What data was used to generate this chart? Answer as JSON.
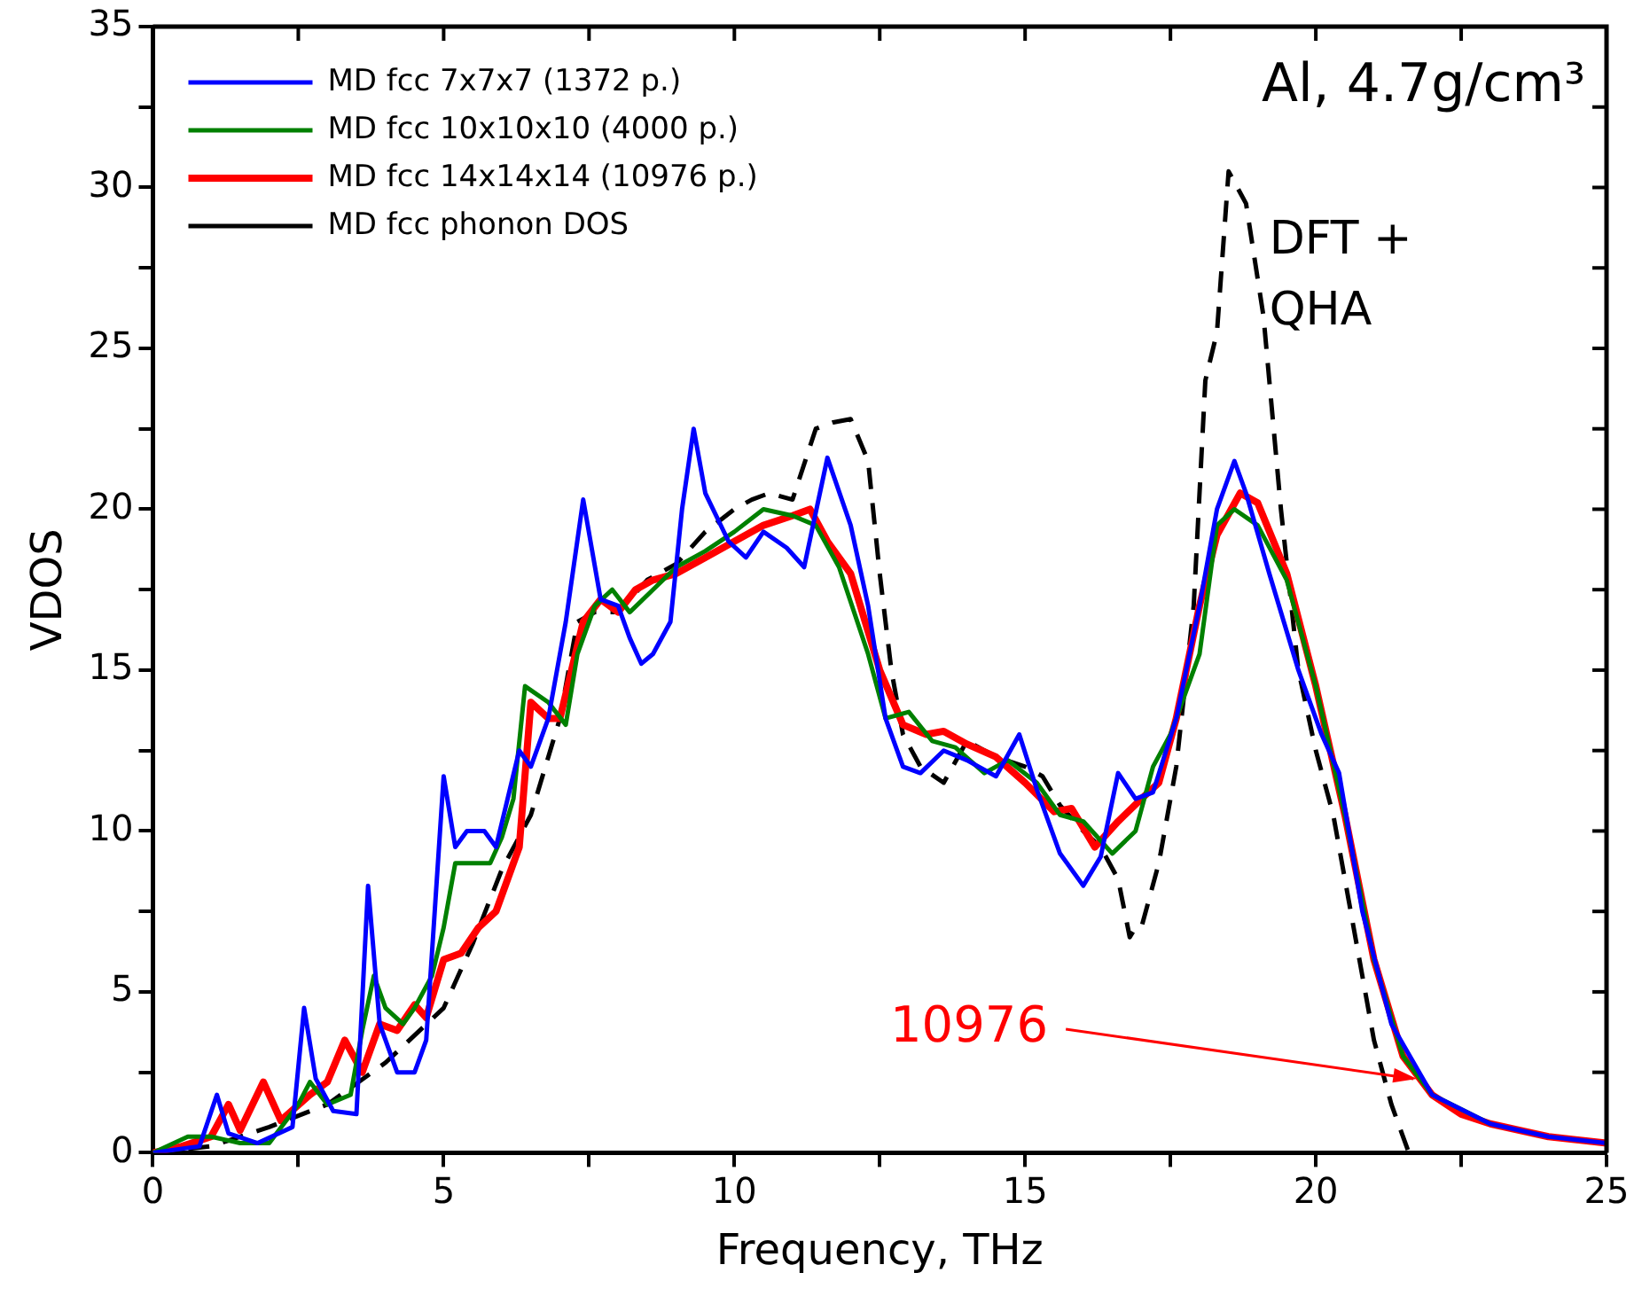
{
  "chart_data": {
    "type": "line",
    "xlabel": "Frequency, THz",
    "ylabel": "VDOS",
    "xlim": [
      0,
      25
    ],
    "ylim": [
      0,
      35
    ],
    "xticks": [
      0,
      {
        "value": 2.5,
        "label": null
      },
      5,
      {
        "value": 7.5,
        "label": null
      },
      10,
      {
        "value": 12.5,
        "label": null
      },
      15,
      {
        "value": 17.5,
        "label": null
      },
      20,
      {
        "value": 22.5,
        "label": null
      },
      25
    ],
    "yticks": [
      0,
      {
        "value": 2.5,
        "label": null
      },
      5,
      {
        "value": 7.5,
        "label": null
      },
      10,
      {
        "value": 12.5,
        "label": null
      },
      15,
      {
        "value": 17.5,
        "label": null
      },
      20,
      {
        "value": 22.5,
        "label": null
      },
      25,
      {
        "value": 27.5,
        "label": null
      },
      30,
      {
        "value": 32.5,
        "label": null
      },
      35
    ],
    "grid": false,
    "legend": "top left",
    "marker": "none",
    "annotations": [
      "Al, 4.7g/cm³",
      "DFT + QHA",
      {
        "text": "10976",
        "x": 21.8,
        "y": 2.3
      }
    ],
    "series": [
      {
        "name": "MD fcc 7x7x7 (1372 p.)",
        "color": "#0000ff",
        "line_style": "solid",
        "x": [
          0,
          0.8,
          1.1,
          1.3,
          1.8,
          2.4,
          2.6,
          2.8,
          3.1,
          3.5,
          3.7,
          3.9,
          4.2,
          4.5,
          4.7,
          5.0,
          5.2,
          5.4,
          5.7,
          5.9,
          6.1,
          6.3,
          6.5,
          6.8,
          7.1,
          7.4,
          7.7,
          8.0,
          8.2,
          8.4,
          8.6,
          8.9,
          9.1,
          9.3,
          9.5,
          9.9,
          10.2,
          10.5,
          10.9,
          11.2,
          11.6,
          12.0,
          12.3,
          12.6,
          12.9,
          13.2,
          13.6,
          14.0,
          14.5,
          14.9,
          15.2,
          15.6,
          16.0,
          16.3,
          16.6,
          16.9,
          17.2,
          17.6,
          18.0,
          18.3,
          18.6,
          18.8,
          19.2,
          19.7,
          20.1,
          20.4,
          20.8,
          21.3,
          22.0,
          23.0,
          24.0,
          25.0
        ],
        "values": [
          0,
          0.2,
          1.8,
          0.6,
          0.3,
          0.8,
          4.5,
          2.3,
          1.3,
          1.2,
          8.3,
          4.0,
          2.5,
          2.5,
          3.5,
          11.7,
          9.5,
          10.0,
          10.0,
          9.5,
          11.0,
          12.5,
          12.0,
          13.5,
          16.5,
          20.3,
          17.2,
          17.0,
          16.0,
          15.2,
          15.5,
          16.5,
          20.0,
          22.5,
          20.5,
          19.0,
          18.5,
          19.3,
          18.8,
          18.2,
          21.6,
          19.5,
          17.0,
          13.5,
          12.0,
          11.8,
          12.5,
          12.2,
          11.7,
          13.0,
          11.3,
          9.3,
          8.3,
          9.2,
          11.8,
          11.0,
          11.2,
          13.5,
          17.0,
          20.0,
          21.5,
          20.5,
          18.0,
          15.0,
          13.0,
          11.8,
          7.5,
          4.0,
          1.8,
          0.9,
          0.5,
          0.3
        ]
      },
      {
        "name": "MD fcc 10x10x10 (4000 p.)",
        "color": "#008000",
        "line_style": "solid",
        "x": [
          0,
          0.6,
          1.0,
          1.5,
          2.0,
          2.5,
          2.7,
          3.0,
          3.4,
          3.6,
          3.8,
          4.0,
          4.3,
          4.5,
          4.8,
          5.0,
          5.2,
          5.4,
          5.8,
          6.0,
          6.2,
          6.4,
          6.8,
          7.1,
          7.3,
          7.6,
          7.9,
          8.2,
          8.6,
          9.0,
          9.5,
          10.0,
          10.5,
          11.0,
          11.4,
          11.8,
          12.3,
          12.6,
          13.0,
          13.4,
          13.8,
          14.3,
          14.7,
          15.2,
          15.6,
          16.0,
          16.5,
          16.9,
          17.2,
          17.5,
          18.0,
          18.3,
          18.6,
          19.0,
          19.5,
          20.0,
          20.5,
          21.0,
          21.5,
          22.0,
          23.0
        ],
        "values": [
          0,
          0.5,
          0.5,
          0.3,
          0.3,
          1.5,
          2.2,
          1.5,
          1.8,
          3.8,
          5.5,
          4.5,
          4.0,
          4.5,
          5.5,
          7.0,
          9.0,
          9.0,
          9.0,
          9.8,
          11.0,
          14.5,
          14.0,
          13.3,
          15.5,
          17.0,
          17.5,
          16.8,
          17.5,
          18.2,
          18.7,
          19.3,
          20.0,
          19.8,
          19.5,
          18.2,
          15.5,
          13.5,
          13.7,
          12.8,
          12.6,
          11.8,
          12.2,
          11.5,
          10.5,
          10.3,
          9.3,
          10.0,
          12.0,
          13.0,
          15.5,
          19.5,
          20.0,
          19.5,
          17.8,
          14.5,
          10.5,
          6.0,
          3.0,
          1.8,
          0.9
        ]
      },
      {
        "name": "MD fcc 14x14x14 (10976 p.)",
        "color": "#ff0000",
        "line_style": "solid",
        "x": [
          0,
          0.5,
          1.0,
          1.3,
          1.5,
          1.9,
          2.2,
          2.7,
          3.0,
          3.3,
          3.6,
          3.9,
          4.2,
          4.5,
          4.7,
          5.0,
          5.3,
          5.6,
          5.9,
          6.1,
          6.3,
          6.5,
          6.8,
          7.0,
          7.2,
          7.4,
          7.7,
          8.0,
          8.3,
          8.6,
          9.0,
          9.5,
          10.0,
          10.5,
          11.0,
          11.3,
          11.6,
          12.0,
          12.5,
          12.9,
          13.3,
          13.6,
          14.0,
          14.5,
          15.0,
          15.5,
          15.8,
          16.2,
          16.6,
          17.0,
          17.3,
          17.6,
          18.0,
          18.3,
          18.7,
          19.0,
          19.5,
          20.0,
          20.5,
          21.0,
          21.5,
          22.0,
          22.5,
          23.0,
          24.0,
          25.0
        ],
        "values": [
          0,
          0.2,
          0.5,
          1.5,
          0.7,
          2.2,
          1.0,
          1.8,
          2.2,
          3.5,
          2.5,
          4.0,
          3.8,
          4.6,
          4.2,
          6.0,
          6.2,
          7.0,
          7.5,
          8.5,
          9.5,
          14.0,
          13.5,
          13.5,
          15.0,
          16.5,
          17.2,
          16.8,
          17.5,
          17.8,
          18.0,
          18.5,
          19.0,
          19.5,
          19.8,
          20.0,
          19.0,
          18.0,
          15.0,
          13.3,
          13.0,
          13.1,
          12.7,
          12.3,
          11.5,
          10.6,
          10.7,
          9.5,
          10.3,
          11.0,
          11.5,
          13.5,
          17.0,
          19.2,
          20.5,
          20.2,
          18.0,
          14.5,
          10.5,
          6.0,
          3.0,
          1.8,
          1.2,
          0.9,
          0.5,
          0.3
        ]
      },
      {
        "name": "MD fcc phonon DOS",
        "color": "#000000",
        "line_style": "dashed",
        "x": [
          0,
          1,
          2,
          3,
          4,
          5,
          5.5,
          6,
          6.5,
          7,
          7.3,
          7.6,
          8,
          8.5,
          9,
          9.5,
          10,
          10.3,
          10.6,
          11,
          11.4,
          11.7,
          12,
          12.3,
          12.5,
          12.7,
          12.9,
          13.2,
          13.6,
          14,
          14.5,
          15,
          15.3,
          15.6,
          16,
          16.3,
          16.6,
          16.8,
          16.9,
          17,
          17.3,
          17.6,
          17.9,
          18.1,
          18.3,
          18.5,
          18.8,
          19.1,
          19.4,
          19.7,
          20,
          20.3,
          20.6,
          21,
          21.3,
          21.6,
          22.5,
          25
        ],
        "values": [
          0,
          0.2,
          0.8,
          1.5,
          2.8,
          4.5,
          6.5,
          8.8,
          10.5,
          13.5,
          16.5,
          16.8,
          16.8,
          17.8,
          18.3,
          19.3,
          20,
          20.3,
          20.5,
          20.3,
          22.5,
          22.7,
          22.8,
          21.5,
          18,
          15,
          13,
          12,
          11.5,
          12.8,
          12.3,
          12,
          11.7,
          10.8,
          10,
          9.5,
          8.5,
          6.7,
          7,
          7,
          9,
          12,
          17,
          24,
          25.5,
          30.5,
          29.5,
          26,
          20,
          15,
          12.5,
          10.5,
          7.5,
          3.5,
          1.5,
          0,
          0,
          0
        ]
      }
    ]
  }
}
